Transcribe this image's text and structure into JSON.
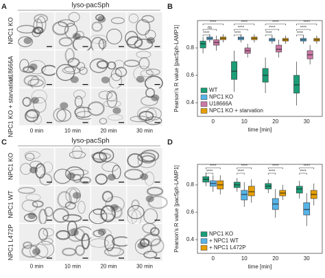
{
  "figure": {
    "panel_a": {
      "label": "A",
      "title": "lyso-pacSph",
      "rows": [
        "NPC1 KO",
        "U18666A",
        "NPC1 KO + starvation"
      ],
      "columns": [
        "0 min",
        "10 min",
        "20 min",
        "30 min"
      ]
    },
    "panel_c": {
      "label": "C",
      "title": "lyso-pacSph",
      "rows": [
        "NPC1 KO",
        "NPC1 WT",
        "NPC1 L472P"
      ],
      "columns": [
        "0 min",
        "10 min",
        "20 min",
        "30 min"
      ]
    }
  },
  "chart_data": [
    {
      "type": "box",
      "label": "B",
      "ylabel": "Pearson's R value [pacSph-LAMP1]",
      "xlabel": "time [min]",
      "categories": [
        "0",
        "10",
        "20",
        "30"
      ],
      "ylim": [
        0.3,
        1.0
      ],
      "yticks": [
        0.4,
        0.6,
        0.8
      ],
      "series": [
        {
          "name": "WT",
          "color": "#1b9e77",
          "boxes": [
            [
              0.76,
              0.8,
              0.83,
              0.85,
              0.88
            ],
            [
              0.48,
              0.57,
              0.63,
              0.7,
              0.78
            ],
            [
              0.47,
              0.55,
              0.6,
              0.65,
              0.73
            ],
            [
              0.38,
              0.47,
              0.53,
              0.6,
              0.7
            ]
          ]
        },
        {
          "name": "NPC1 KO",
          "color": "#56b4e9",
          "boxes": [
            [
              0.84,
              0.86,
              0.87,
              0.88,
              0.9
            ],
            [
              0.84,
              0.86,
              0.87,
              0.88,
              0.9
            ],
            [
              0.83,
              0.85,
              0.86,
              0.87,
              0.89
            ],
            [
              0.83,
              0.85,
              0.86,
              0.87,
              0.89
            ]
          ]
        },
        {
          "name": "U18666A",
          "color": "#cc79a7",
          "boxes": [
            [
              0.78,
              0.82,
              0.84,
              0.86,
              0.89
            ],
            [
              0.73,
              0.76,
              0.78,
              0.8,
              0.83
            ],
            [
              0.73,
              0.77,
              0.79,
              0.82,
              0.86
            ],
            [
              0.68,
              0.72,
              0.75,
              0.78,
              0.82
            ]
          ]
        },
        {
          "name": "NPC1 KO + starvation",
          "color": "#e69f00",
          "boxes": [
            [
              0.84,
              0.86,
              0.87,
              0.88,
              0.9
            ],
            [
              0.84,
              0.86,
              0.87,
              0.88,
              0.9
            ],
            [
              0.83,
              0.85,
              0.86,
              0.87,
              0.89
            ],
            [
              0.83,
              0.85,
              0.86,
              0.87,
              0.89
            ]
          ]
        }
      ],
      "significance": [
        [
          "****",
          "ns",
          "****"
        ],
        [
          "****",
          "****",
          "****"
        ],
        [
          "****",
          "****",
          "****"
        ],
        [
          "****",
          "****",
          "****"
        ]
      ]
    },
    {
      "type": "box",
      "label": "D",
      "ylabel": "Pearson's R value [pacSph-LAMP1]",
      "xlabel": "time [min]",
      "categories": [
        "0",
        "10",
        "20",
        "30"
      ],
      "ylim": [
        0.3,
        0.95
      ],
      "yticks": [
        0.4,
        0.6,
        0.8
      ],
      "series": [
        {
          "name": "NPC1 KO",
          "color": "#1b9e77",
          "boxes": [
            [
              0.79,
              0.82,
              0.84,
              0.86,
              0.89
            ],
            [
              0.75,
              0.78,
              0.8,
              0.82,
              0.85
            ],
            [
              0.74,
              0.77,
              0.79,
              0.81,
              0.84
            ],
            [
              0.7,
              0.74,
              0.77,
              0.79,
              0.83
            ]
          ]
        },
        {
          "name": "+ NPC1 WT",
          "color": "#56b4e9",
          "boxes": [
            [
              0.75,
              0.79,
              0.81,
              0.83,
              0.87
            ],
            [
              0.64,
              0.69,
              0.73,
              0.76,
              0.82
            ],
            [
              0.56,
              0.62,
              0.66,
              0.7,
              0.77
            ],
            [
              0.5,
              0.58,
              0.62,
              0.67,
              0.74
            ]
          ]
        },
        {
          "name": "+ NPC1 L472P",
          "color": "#e69f00",
          "boxes": [
            [
              0.73,
              0.77,
              0.8,
              0.83,
              0.87
            ],
            [
              0.67,
              0.72,
              0.75,
              0.79,
              0.84
            ],
            [
              0.69,
              0.72,
              0.74,
              0.76,
              0.8
            ],
            [
              0.65,
              0.7,
              0.73,
              0.76,
              0.81
            ]
          ]
        }
      ],
      "significance": [
        [
          "****",
          "****"
        ],
        [
          "****",
          "****"
        ],
        [
          "****",
          "****"
        ],
        [
          "****",
          "****"
        ]
      ]
    }
  ]
}
